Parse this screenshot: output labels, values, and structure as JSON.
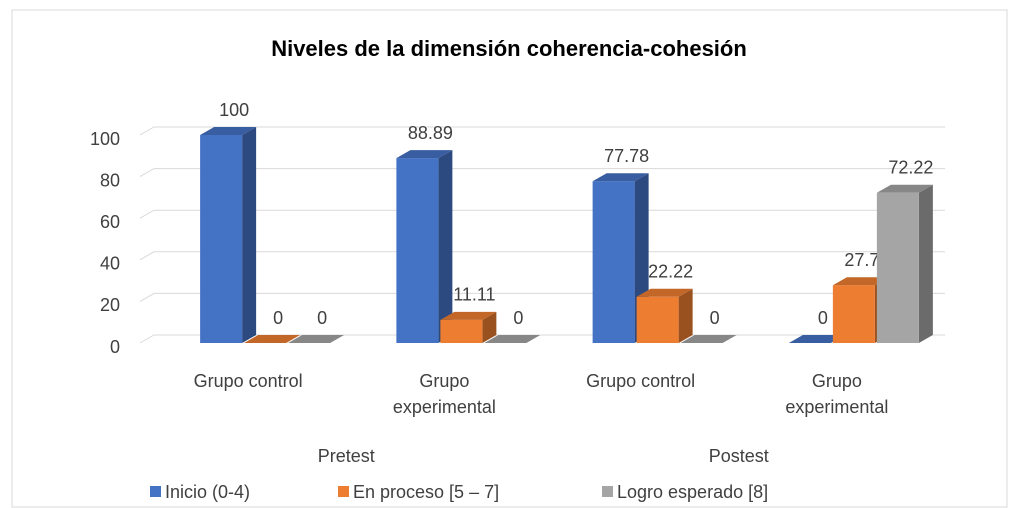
{
  "chart_data": {
    "type": "bar3d",
    "title": "Niveles de la dimensión coherencia-cohesión",
    "categories": [
      "Grupo control",
      "Grupo experimental",
      "Grupo control",
      "Grupo experimental"
    ],
    "groups": [
      "Pretest",
      "Postest"
    ],
    "series": [
      {
        "name": "Inicio (0-4)",
        "color": "#4472c4",
        "values": [
          100,
          88.89,
          77.78,
          0
        ]
      },
      {
        "name": "En proceso [5 – 7]",
        "color": "#ed7d31",
        "values": [
          0,
          11.11,
          22.22,
          27.78
        ]
      },
      {
        "name": "Logro esperado [8]",
        "color": "#a5a5a5",
        "values": [
          0,
          0,
          0,
          72.22
        ]
      }
    ],
    "ylim": [
      0,
      100
    ],
    "yticks": [
      0,
      20,
      40,
      60,
      80,
      100
    ],
    "grid": true,
    "legend": "bottom"
  }
}
